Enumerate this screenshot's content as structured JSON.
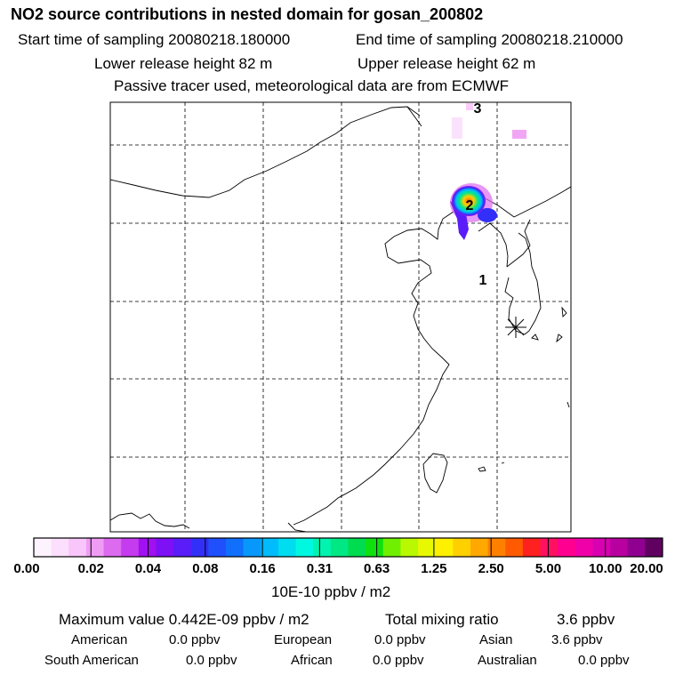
{
  "header": {
    "title": "NO2 source contributions in nested domain for gosan_200802",
    "start_time": "Start time of sampling 20080218.180000",
    "end_time": "End time of sampling 20080218.210000",
    "lower_release": "Lower release height   82 m",
    "upper_release": "Upper release height   62 m",
    "tracer_note": "Passive tracer used, meteorological data are from ECMWF"
  },
  "map": {
    "labels": [
      "1",
      "2",
      "3"
    ],
    "station_marker": "receptor-star"
  },
  "colorbar": {
    "colors": [
      "#fdf3fe",
      "#fbdffc",
      "#f8c6fa",
      "#f09cf4",
      "#dc6bf0",
      "#c53bee",
      "#a010f0",
      "#7d10f4",
      "#5a1cf8",
      "#3230f8",
      "#2050fc",
      "#1070fc",
      "#0898fc",
      "#00bcfc",
      "#00dcf0",
      "#00f8e0",
      "#00f4b0",
      "#00e884",
      "#00dc50",
      "#10e010",
      "#70f000",
      "#b8f800",
      "#e8f800",
      "#fff000",
      "#ffd000",
      "#ffa800",
      "#ff8000",
      "#ff5a00",
      "#ff2020",
      "#ff1060",
      "#ff0090",
      "#f000a8",
      "#d800b0",
      "#b800a0",
      "#900090",
      "#600060"
    ],
    "ticks": [
      "0.00",
      "0.02",
      "0.04",
      "0.08",
      "0.16",
      "0.31",
      "0.63",
      "1.25",
      "2.50",
      "5.00",
      "10.00",
      "20.00"
    ],
    "unit": "10E-10 ppbv / m2"
  },
  "stats": {
    "max_label": "Maximum value  0.442E-09 ppbv / m2",
    "total_label": "Total mixing ratio",
    "total_value": "3.6 ppbv",
    "regions": [
      {
        "name": "American",
        "value": "0.0 ppbv"
      },
      {
        "name": "European",
        "value": "0.0 ppbv"
      },
      {
        "name": "Asian",
        "value": "3.6 ppbv"
      },
      {
        "name": "South American",
        "value": "0.0 ppbv"
      },
      {
        "name": "African",
        "value": "0.0 ppbv"
      },
      {
        "name": "Australian",
        "value": "0.0 ppbv"
      }
    ]
  }
}
